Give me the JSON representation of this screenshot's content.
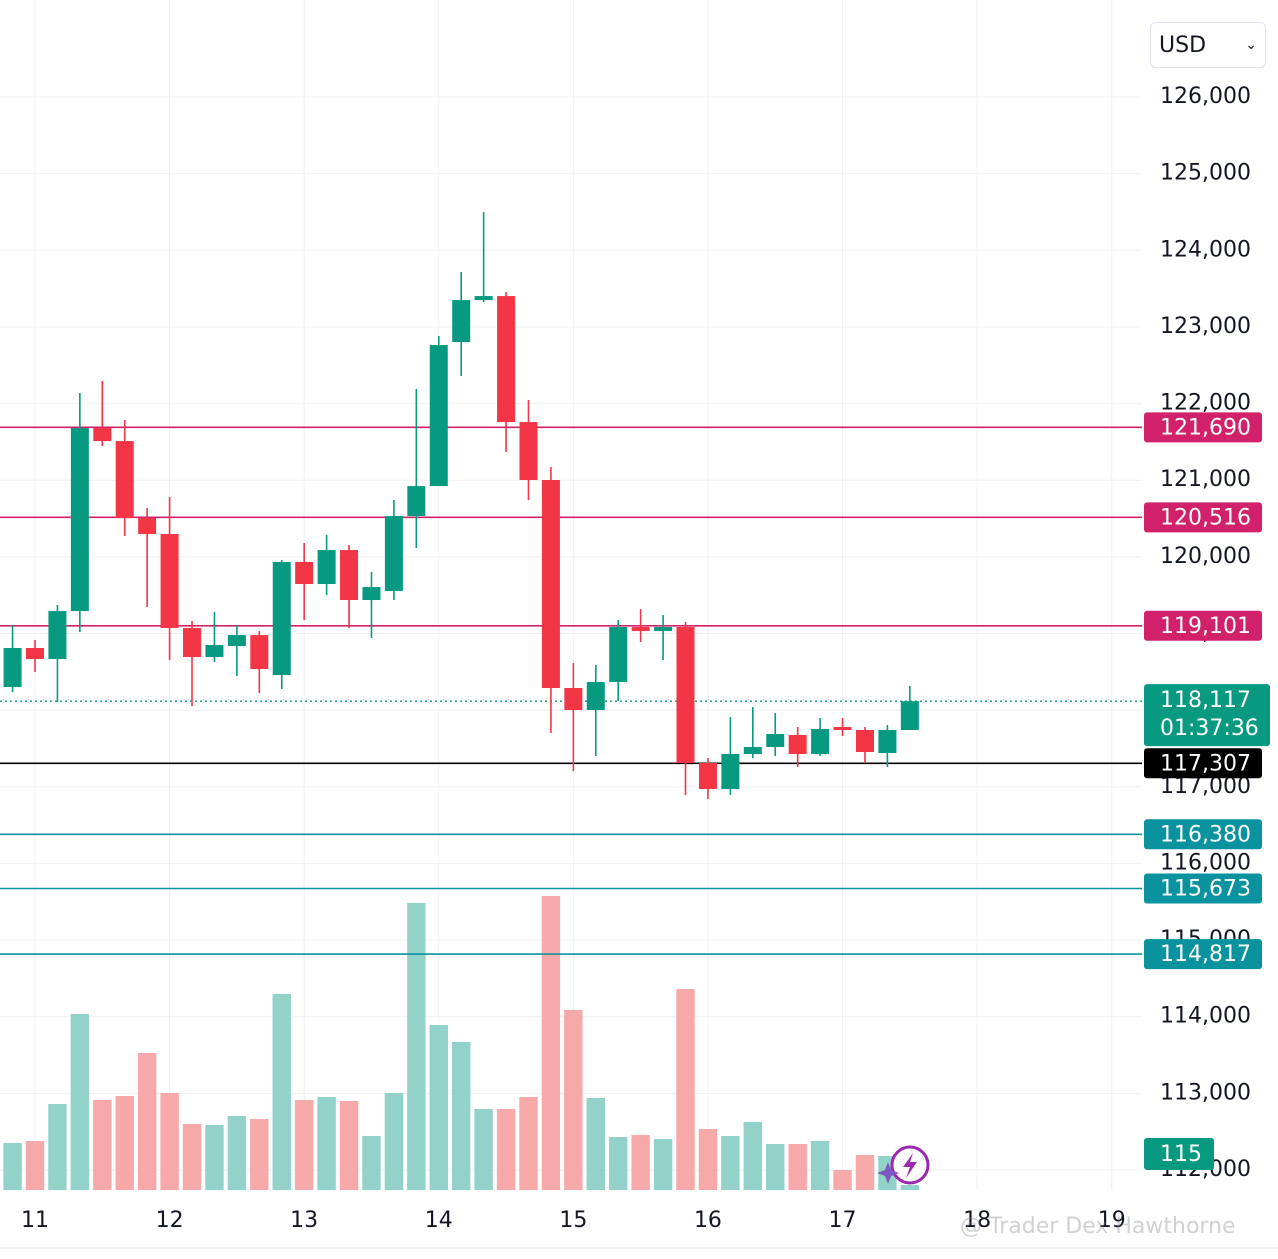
{
  "chart_data": {
    "type": "candlestick",
    "currency": "USD",
    "watermark": "@ Trader Dex Hawthorne",
    "x": [
      10.8333,
      11,
      11.1667,
      11.3333,
      11.5,
      11.6667,
      11.8333,
      12,
      12.1667,
      12.3333,
      12.5,
      12.6667,
      12.8333,
      13,
      13.1667,
      13.3333,
      13.5,
      13.6667,
      13.8333,
      14,
      14.1667,
      14.3333,
      14.5,
      14.6667,
      14.8333,
      15,
      15.1667,
      15.3333,
      15.5,
      15.6667,
      15.8333,
      16,
      16.1667,
      16.3333,
      16.5,
      16.6667,
      16.8333,
      17,
      17.1667,
      17.3333,
      17.5
    ],
    "open": [
      118302,
      118811,
      118667,
      119293,
      121681,
      121511,
      120507,
      120298,
      119072,
      118693,
      118837,
      118980,
      118458,
      119933,
      119646,
      120089,
      119437,
      119554,
      120533,
      120924,
      122803,
      123351,
      123403,
      121759,
      121003,
      118289,
      118002,
      118367,
      119085,
      119032,
      119085,
      117310,
      116971,
      117428,
      117519,
      117676,
      117428,
      117780,
      117741,
      117441,
      117741
    ],
    "high": [
      119111,
      118915,
      119372,
      122138,
      122294,
      121786,
      120637,
      120781,
      119163,
      119280,
      119111,
      119032,
      119959,
      120181,
      120285,
      120154,
      119802,
      120742,
      122190,
      122882,
      123717,
      124499,
      123456,
      122047,
      121172,
      118615,
      118589,
      119176,
      119319,
      119241,
      119150,
      117376,
      117910,
      118041,
      117962,
      117780,
      117897,
      117897,
      117780,
      117806,
      118315
    ],
    "low": [
      118237,
      118497,
      118106,
      119019,
      121446,
      120272,
      119346,
      118654,
      118054,
      118628,
      118445,
      118223,
      118276,
      119176,
      119502,
      119072,
      118941,
      119437,
      120115,
      120924,
      122360,
      123325,
      121368,
      120742,
      117702,
      117206,
      117401,
      118119,
      118889,
      118654,
      116893,
      116840,
      116893,
      117376,
      117401,
      117258,
      117401,
      117662,
      117310,
      117258,
      117741
    ],
    "close": [
      118811,
      118667,
      119293,
      121681,
      121511,
      120507,
      120298,
      119072,
      118693,
      118850,
      118980,
      118537,
      119933,
      119646,
      120089,
      119437,
      119606,
      120533,
      120924,
      122764,
      123351,
      123403,
      121759,
      121003,
      118289,
      118002,
      118367,
      119085,
      119032,
      119085,
      117310,
      116971,
      117428,
      117519,
      117689,
      117428,
      117754,
      117741,
      117454,
      117741,
      118117
    ],
    "volume": [
      1081,
      1127,
      1978,
      4048,
      2070,
      2162,
      3151,
      2231,
      1518,
      1495,
      1702,
      1633,
      4508,
      2070,
      2139,
      2047,
      1242,
      2231,
      6601,
      3795,
      3404,
      1863,
      1863,
      2139,
      6762,
      4140,
      2116,
      1219,
      1265,
      1173,
      4623,
      1403,
      1242,
      1564,
      1058,
      1058,
      1127,
      460,
      805,
      782,
      115
    ],
    "up_color": "#089981",
    "down_color": "#f23645",
    "volume_up_color": "#92d2c8",
    "volume_down_color": "#f7a8a8",
    "last_price_label": "118,117",
    "countdown": "01:37:36",
    "last_price_color": "#089981",
    "levels": [
      {
        "value": 121690,
        "label": "121,690",
        "color": "#d0216a"
      },
      {
        "value": 120516,
        "label": "120,516",
        "color": "#d0216a"
      },
      {
        "value": 119101,
        "label": "119,101",
        "color": "#d0216a"
      },
      {
        "value": 117307,
        "label": "117,307",
        "color": "#000000"
      },
      {
        "value": 116380,
        "label": "116,380",
        "color": "#0a939f"
      },
      {
        "value": 115673,
        "label": "115,673",
        "color": "#0a939f"
      },
      {
        "value": 114817,
        "label": "114,817",
        "color": "#0a939f"
      }
    ],
    "xlim": [
      10.74,
      19.225
    ],
    "xticks": [
      11,
      12,
      13,
      14,
      15,
      16,
      17,
      18,
      19
    ],
    "ylim": [
      111739,
      127266
    ],
    "yticks": [
      {
        "value": 112000,
        "label": "112,000"
      },
      {
        "value": 113000,
        "label": "113,000"
      },
      {
        "value": 114000,
        "label": "114,000"
      },
      {
        "value": 115000,
        "label": "115,000"
      },
      {
        "value": 116000,
        "label": "116,000"
      },
      {
        "value": 117000,
        "label": "117,000"
      },
      {
        "value": 118000,
        "label": "118,000"
      },
      {
        "value": 119000,
        "label": "119,000"
      },
      {
        "value": 120000,
        "label": "120,000"
      },
      {
        "value": 121000,
        "label": "121,000"
      },
      {
        "value": 122000,
        "label": "122,000"
      },
      {
        "value": 123000,
        "label": "123,000"
      },
      {
        "value": 124000,
        "label": "124,000"
      },
      {
        "value": 125000,
        "label": "125,000"
      },
      {
        "value": 126000,
        "label": "126,000"
      }
    ],
    "grid": true
  }
}
